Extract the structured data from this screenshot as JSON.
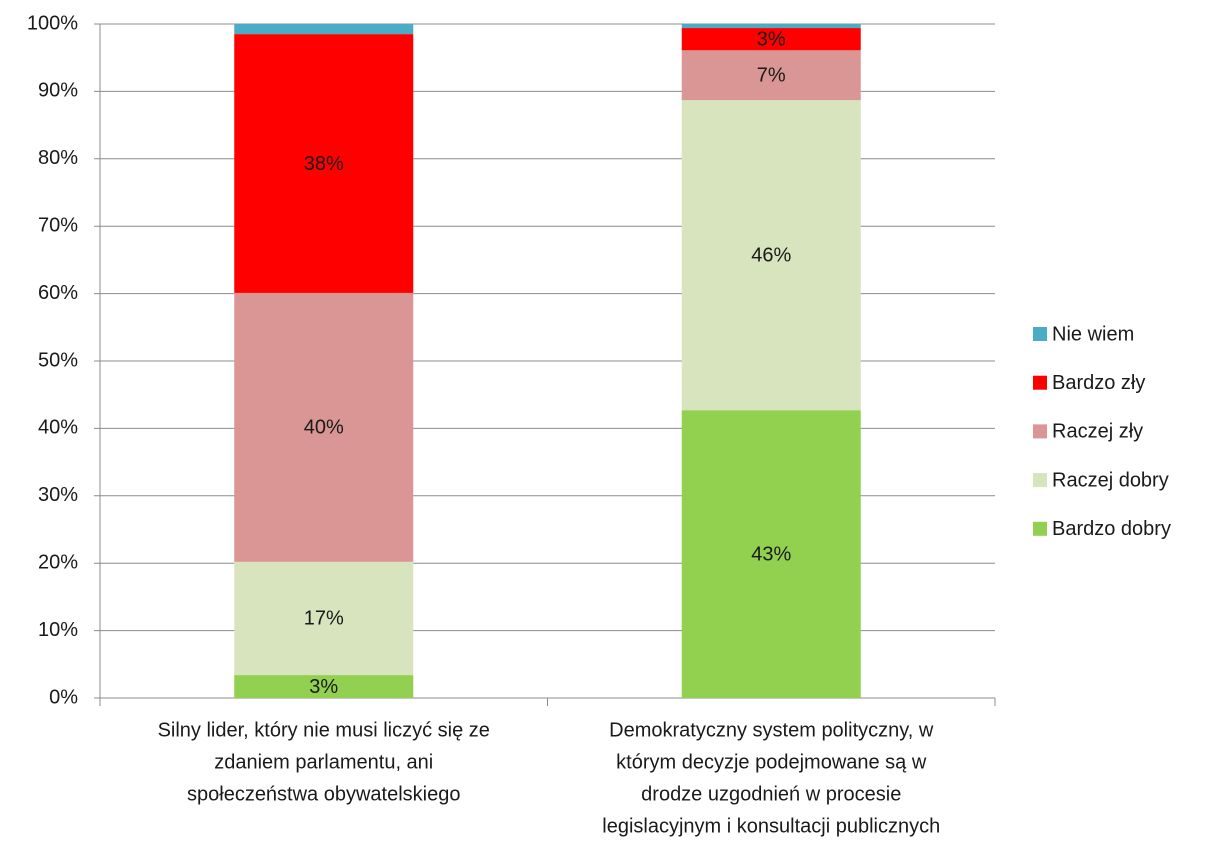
{
  "chart_data": {
    "type": "stacked_bar",
    "categories": [
      [
        "Silny lider, który nie musi liczyć się ze",
        "zdaniem parlamentu, ani",
        "społeczeństwa obywatelskiego"
      ],
      [
        "Demokratyczny system polityczny, w",
        "którym decyzje podejmowane są w",
        "drodze uzgodnień w procesie",
        "legislacyjnym i konsultacji publicznych"
      ]
    ],
    "series": [
      {
        "name": "Bardzo dobry",
        "color": "#92d050",
        "values": [
          3.4,
          42.7
        ],
        "value_labels": [
          "3%",
          "43%"
        ]
      },
      {
        "name": "Raczej dobry",
        "color": "#d7e4bd",
        "values": [
          16.8,
          46.0
        ],
        "value_labels": [
          "17%",
          "46%"
        ]
      },
      {
        "name": "Raczej zły",
        "color": "#d99694",
        "values": [
          39.9,
          7.4
        ],
        "value_labels": [
          "40%",
          "7%"
        ]
      },
      {
        "name": "Bardzo zły",
        "color": "#ff0000",
        "values": [
          38.4,
          3.3
        ],
        "value_labels": [
          "38%",
          "3%"
        ]
      },
      {
        "name": "Nie wiem",
        "color": "#4bacc6",
        "values": [
          1.5,
          0.6
        ],
        "value_labels": [
          null,
          null
        ]
      }
    ],
    "ylim": [
      0,
      100
    ],
    "yticks": [
      {
        "value": 0,
        "label": "0%"
      },
      {
        "value": 10,
        "label": "10%"
      },
      {
        "value": 20,
        "label": "20%"
      },
      {
        "value": 30,
        "label": "30%"
      },
      {
        "value": 40,
        "label": "40%"
      },
      {
        "value": 50,
        "label": "50%"
      },
      {
        "value": 60,
        "label": "60%"
      },
      {
        "value": 70,
        "label": "70%"
      },
      {
        "value": 80,
        "label": "80%"
      },
      {
        "value": 90,
        "label": "90%"
      },
      {
        "value": 100,
        "label": "100%"
      }
    ],
    "grid": true,
    "legend": "right"
  }
}
